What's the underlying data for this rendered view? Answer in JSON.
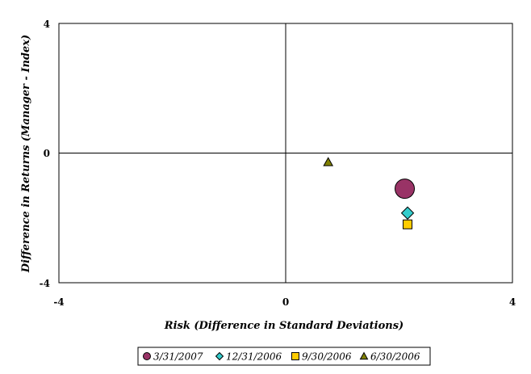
{
  "chart_data": {
    "type": "scatter",
    "xlabel": "Risk (Difference in Standard Deviations)",
    "ylabel": "Difference in Returns (Manager - Index)",
    "xlim": [
      -4,
      4
    ],
    "ylim": [
      -4,
      4
    ],
    "xticks": [
      "-4",
      "0",
      "4"
    ],
    "yticks": [
      "4",
      "0",
      "-4"
    ],
    "grid": false,
    "legend_position": "bottom",
    "series": [
      {
        "name": "3/31/2007",
        "marker": "circle",
        "color": "#993366",
        "x": 2.1,
        "y": -1.1,
        "size": "large"
      },
      {
        "name": "12/31/2006",
        "marker": "diamond",
        "color": "#33CCCC",
        "x": 2.15,
        "y": -1.85,
        "size": "medium"
      },
      {
        "name": "9/30/2006",
        "marker": "square",
        "color": "#FFCC00",
        "x": 2.15,
        "y": -2.2,
        "size": "small"
      },
      {
        "name": "6/30/2006",
        "marker": "triangle",
        "color": "#808000",
        "x": 0.75,
        "y": -0.28,
        "size": "small"
      }
    ]
  }
}
